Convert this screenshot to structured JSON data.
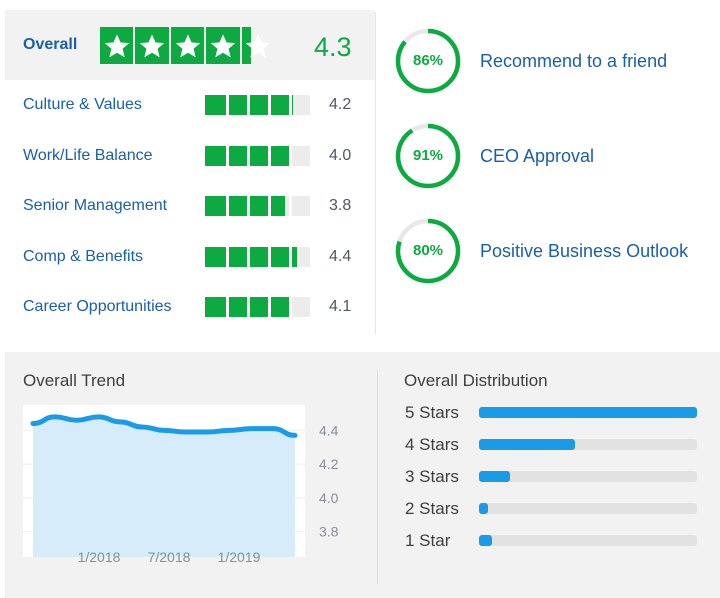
{
  "overall": {
    "label": "Overall",
    "score": "4.3",
    "rating": 4.3,
    "accent": "#0caa41"
  },
  "subratings": [
    {
      "label": "Culture & Values",
      "value": "4.2",
      "rating": 4.2
    },
    {
      "label": "Work/Life Balance",
      "value": "4.0",
      "rating": 4.0
    },
    {
      "label": "Senior Management",
      "value": "3.8",
      "rating": 3.8
    },
    {
      "label": "Comp & Benefits",
      "value": "4.4",
      "rating": 4.4
    },
    {
      "label": "Career Opportunities",
      "value": "4.1",
      "rating": 4.1
    }
  ],
  "rings": [
    {
      "pct": "86%",
      "value": 86,
      "label": "Recommend to a friend"
    },
    {
      "pct": "91%",
      "value": 91,
      "label": "CEO Approval"
    },
    {
      "pct": "80%",
      "value": 80,
      "label": "Positive Business Outlook"
    }
  ],
  "trend": {
    "title": "Overall Trend"
  },
  "distribution": {
    "title": "Overall Distribution",
    "rows": [
      {
        "label": "5 Stars",
        "fraction": 1.0
      },
      {
        "label": "4 Stars",
        "fraction": 0.44
      },
      {
        "label": "3 Stars",
        "fraction": 0.14
      },
      {
        "label": "2 Stars",
        "fraction": 0.04
      },
      {
        "label": "1 Star",
        "fraction": 0.06
      }
    ],
    "bar_color": "#1a9be8"
  },
  "chart_data": {
    "type": "area",
    "title": "Overall Trend",
    "xlabel": "",
    "ylabel": "",
    "x": [
      "2017-08",
      "2017-10",
      "2017-12",
      "2018-02",
      "2018-04",
      "2018-06",
      "2018-08",
      "2018-10",
      "2018-12",
      "2019-02",
      "2019-04",
      "2019-06",
      "2019-07"
    ],
    "values": [
      4.44,
      4.48,
      4.46,
      4.48,
      4.45,
      4.42,
      4.4,
      4.39,
      4.39,
      4.4,
      4.41,
      4.41,
      4.37
    ],
    "xticks": [
      "1/2018",
      "7/2018",
      "1/2019"
    ],
    "yticks": [
      "4.4",
      "4.2",
      "4.0",
      "3.8"
    ],
    "ylim": [
      3.65,
      4.55
    ],
    "line_color": "#1a9be8",
    "fill_color": "#d6ecfb",
    "grid": true
  }
}
